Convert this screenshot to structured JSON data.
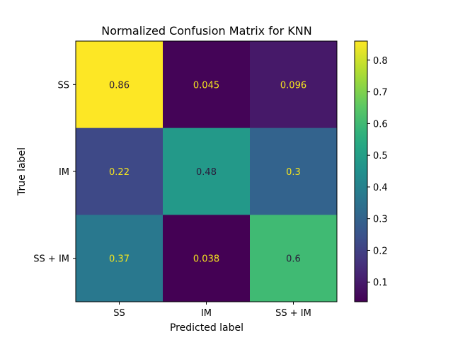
{
  "chart_data": {
    "type": "heatmap",
    "title": "Normalized Confusion Matrix for KNN",
    "xlabel": "Predicted label",
    "ylabel": "True label",
    "x_categories": [
      "SS",
      "IM",
      "SS + IM"
    ],
    "y_categories": [
      "SS",
      "IM",
      "SS + IM"
    ],
    "values": [
      [
        0.86,
        0.045,
        0.096
      ],
      [
        0.22,
        0.48,
        0.3
      ],
      [
        0.37,
        0.038,
        0.6
      ]
    ],
    "value_labels": [
      [
        "0.86",
        "0.045",
        "0.096"
      ],
      [
        "0.22",
        "0.48",
        "0.3"
      ],
      [
        "0.37",
        "0.038",
        "0.6"
      ]
    ],
    "colormap": "viridis",
    "color_range": [
      0.038,
      0.86
    ],
    "colorbar_ticks": [
      0.1,
      0.2,
      0.3,
      0.4,
      0.5,
      0.6,
      0.7,
      0.8
    ],
    "colorbar_tick_labels": [
      "0.1",
      "0.2",
      "0.3",
      "0.4",
      "0.5",
      "0.6",
      "0.7",
      "0.8"
    ],
    "grid": false,
    "text_colors": {
      "dark": "#2a1a3a",
      "light": "#f5e51e"
    }
  }
}
